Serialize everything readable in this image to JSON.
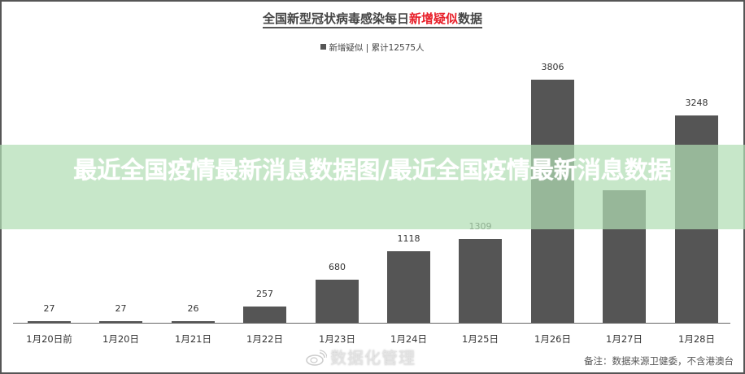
{
  "header": {
    "title_prefix": "全国新型冠状病毒感染每日",
    "title_highlight": "新增疑似",
    "title_suffix": "数据",
    "highlight_color": "#e8202a"
  },
  "legend": {
    "series_label": "新增疑似",
    "separator": " | ",
    "total_label": "累计12575人"
  },
  "footer": {
    "note": "备注：数据来源卫健委，不含港澳台",
    "watermark": "数据化管理"
  },
  "overlay": {
    "caption": "最近全国疫情最新消息数据图/最近全国疫情最新消息数据"
  },
  "chart_data": {
    "type": "bar",
    "title": "全国新型冠状病毒感染每日新增疑似数据",
    "xlabel": "",
    "ylabel": "",
    "categories": [
      "1月20日前",
      "1月20日",
      "1月21日",
      "1月22日",
      "1月23日",
      "1月24日",
      "1月25日",
      "1月26日",
      "1月27日",
      "1月28日"
    ],
    "series": [
      {
        "name": "新增疑似",
        "values": [
          27,
          27,
          26,
          257,
          680,
          1118,
          1309,
          3806,
          2077,
          3248
        ],
        "color": "#555555"
      }
    ],
    "data_labels": [
      "27",
      "27",
      "26",
      "257",
      "680",
      "1118",
      "1309",
      "3806",
      "",
      "3248"
    ],
    "total": 12575,
    "ylim": [
      0,
      3806
    ],
    "grid": false,
    "legend_position": "top"
  }
}
